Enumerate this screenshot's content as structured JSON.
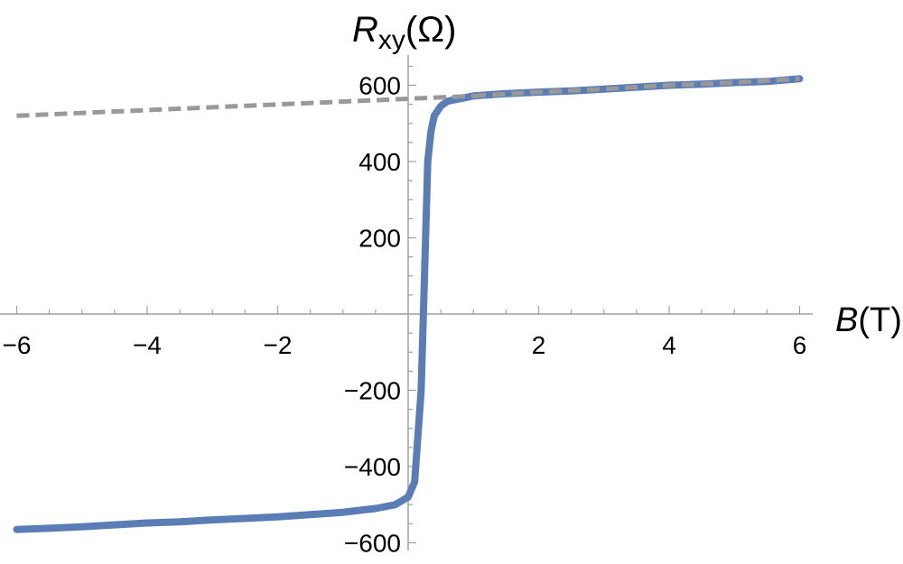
{
  "chart_data": {
    "type": "line",
    "ylabel_main": "R",
    "ylabel_sub": "xy",
    "ylabel_unit": "(Ω)",
    "xlabel_main": "B",
    "xlabel_unit": "(T)",
    "xlim": [
      -6.2,
      6.2
    ],
    "ylim": [
      -620,
      680
    ],
    "x_ticks": [
      -6,
      -4,
      -2,
      2,
      4,
      6
    ],
    "x_tick_labels": [
      "−6",
      "−4",
      "−2",
      "2",
      "4",
      "6"
    ],
    "y_ticks": [
      -600,
      -400,
      -200,
      200,
      400,
      600
    ],
    "y_tick_labels": [
      "−600",
      "−400",
      "−200",
      "200",
      "400",
      "600"
    ],
    "x_minor_step": 0.5,
    "y_minor_step": 50,
    "series": [
      {
        "style": "solid",
        "color": "#5b7db5",
        "x": [
          -6.0,
          -5.5,
          -5.0,
          -4.5,
          -4.0,
          -3.5,
          -3.0,
          -2.5,
          -2.0,
          -1.5,
          -1.0,
          -0.5,
          -0.2,
          0.0,
          0.1,
          0.2,
          0.25,
          0.3,
          0.35,
          0.4,
          0.5,
          0.6,
          0.8,
          1.0,
          1.5,
          2.0,
          2.5,
          3.0,
          3.5,
          4.0,
          4.5,
          5.0,
          5.5,
          6.0
        ],
        "y": [
          -565,
          -562,
          -558,
          -553,
          -548,
          -545,
          -540,
          -536,
          -532,
          -526,
          -520,
          -510,
          -500,
          -480,
          -440,
          -200,
          100,
          400,
          480,
          520,
          545,
          558,
          565,
          572,
          578,
          582,
          585,
          590,
          595,
          600,
          603,
          607,
          610,
          617
        ]
      },
      {
        "style": "dashed",
        "color": "#999999",
        "x": [
          -6.0,
          1.0
        ],
        "y": [
          520,
          572
        ]
      },
      {
        "style": "dashed",
        "color": "#999999",
        "x": [
          1.0,
          2.0,
          3.0,
          4.0,
          5.0,
          6.0
        ],
        "y": [
          572,
          582,
          590,
          600,
          607,
          617
        ]
      }
    ]
  }
}
